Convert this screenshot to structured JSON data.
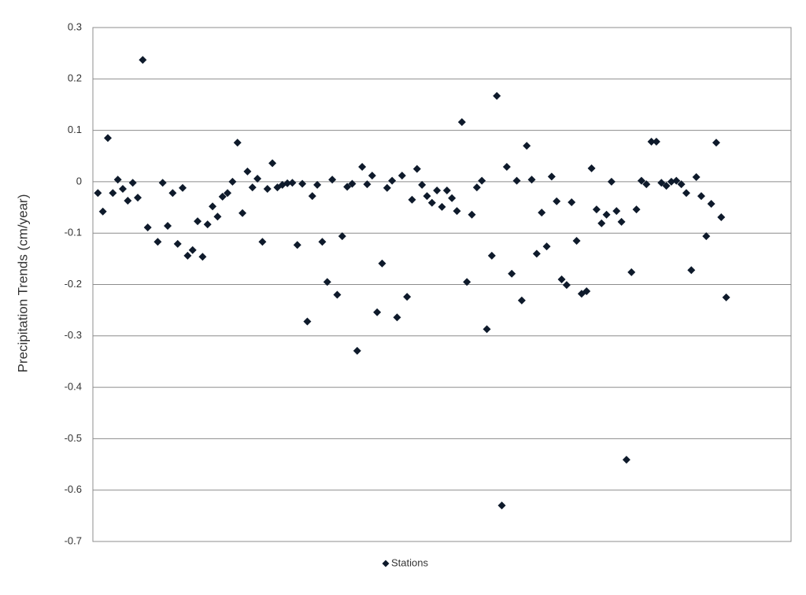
{
  "chart_data": {
    "type": "scatter",
    "y_label": "Precipitation Trends  (cm/year)",
    "ylim": [
      -0.7,
      0.3
    ],
    "yticks": [
      -0.7,
      -0.6,
      -0.5,
      -0.4,
      -0.3,
      -0.2,
      -0.1,
      0,
      0.1,
      0.2,
      0.3
    ],
    "grid": true,
    "legend": "bottom",
    "series": [
      {
        "name": "Stations",
        "color": "#0e1a2b",
        "values": [
          -0.022,
          -0.058,
          0.085,
          -0.022,
          0.004,
          -0.014,
          -0.037,
          -0.002,
          -0.031,
          0.237,
          -0.089,
          null,
          -0.117,
          -0.002,
          -0.086,
          -0.022,
          -0.121,
          -0.012,
          -0.144,
          -0.133,
          -0.077,
          -0.146,
          -0.083,
          -0.048,
          -0.068,
          -0.029,
          -0.022,
          0,
          0.076,
          -0.061,
          0.02,
          -0.011,
          0.006,
          -0.117,
          -0.014,
          0.036,
          -0.011,
          -0.006,
          -0.003,
          -0.002,
          -0.123,
          -0.004,
          -0.272,
          -0.028,
          -0.006,
          -0.117,
          -0.195,
          0.004,
          -0.22,
          -0.106,
          -0.01,
          -0.004,
          -0.329,
          0.029,
          -0.005,
          0.012,
          -0.254,
          -0.159,
          -0.012,
          0.002,
          -0.264,
          0.012,
          -0.224,
          -0.035,
          0.025,
          -0.006,
          -0.028,
          -0.041,
          -0.017,
          -0.049,
          -0.017,
          -0.032,
          -0.057,
          0.116,
          -0.195,
          -0.064,
          -0.011,
          0.002,
          -0.287,
          -0.144,
          0.167,
          -0.63,
          0.029,
          -0.179,
          0.002,
          -0.231,
          0.07,
          0.004,
          -0.14,
          -0.06,
          -0.126,
          0.01,
          -0.038,
          -0.19,
          -0.201,
          -0.04,
          -0.115,
          -0.218,
          -0.213,
          0.026,
          -0.054,
          -0.081,
          -0.064,
          0,
          -0.057,
          -0.078,
          -0.541,
          -0.176,
          -0.054,
          0.002,
          -0.005,
          0.078,
          0.078,
          -0.002,
          -0.008,
          0,
          0.002,
          -0.005,
          -0.022,
          -0.172,
          0.009,
          -0.028,
          -0.106,
          -0.043,
          0.076,
          -0.069,
          -0.225
        ]
      }
    ]
  }
}
